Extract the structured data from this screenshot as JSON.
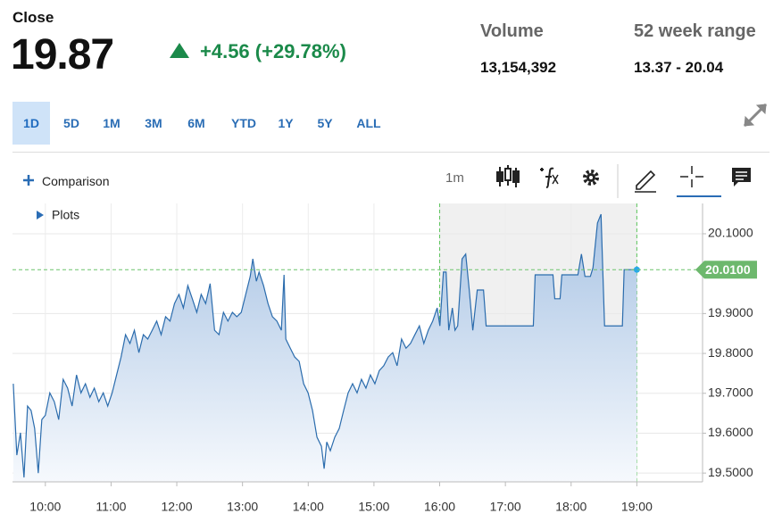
{
  "header": {
    "label": "Close",
    "price": "19.87",
    "change": "+4.56 (+29.78%)",
    "stats": [
      {
        "label": "Volume",
        "value": "13,154,392"
      },
      {
        "label": "52 week range",
        "value": "13.37 - 20.04"
      }
    ]
  },
  "ranges": [
    "1D",
    "5D",
    "1M",
    "3M",
    "6M",
    "YTD",
    "1Y",
    "5Y",
    "ALL"
  ],
  "toolbar": {
    "comparison": "Comparison",
    "interval": "1m",
    "plots": "Plots"
  },
  "chart_data": {
    "type": "line",
    "color": "#2b6cad",
    "x": [
      9.512,
      9.566,
      9.621,
      9.675,
      9.729,
      9.783,
      9.837,
      9.892,
      9.946,
      10.0,
      10.068,
      10.136,
      10.203,
      10.271,
      10.339,
      10.407,
      10.474,
      10.542,
      10.61,
      10.678,
      10.745,
      10.813,
      10.881,
      10.949,
      11.016,
      11.084,
      11.152,
      11.22,
      11.287,
      11.355,
      11.423,
      11.491,
      11.558,
      11.626,
      11.694,
      11.762,
      11.829,
      11.897,
      11.965,
      12.033,
      12.1,
      12.168,
      12.236,
      12.304,
      12.371,
      12.439,
      12.507,
      12.575,
      12.642,
      12.71,
      12.778,
      12.846,
      12.913,
      12.981,
      13.049,
      13.117,
      13.157,
      13.211,
      13.252,
      13.32,
      13.388,
      13.455,
      13.523,
      13.591,
      13.632,
      13.659,
      13.727,
      13.794,
      13.862,
      13.93,
      13.998,
      14.065,
      14.133,
      14.201,
      14.242,
      14.282,
      14.336,
      14.404,
      14.472,
      14.539,
      14.607,
      14.675,
      14.743,
      14.81,
      14.878,
      14.946,
      15.014,
      15.081,
      15.149,
      15.217,
      15.285,
      15.352,
      15.42,
      15.488,
      15.556,
      15.623,
      15.691,
      15.759,
      15.827,
      15.894,
      15.962,
      16.003,
      16.057,
      16.098,
      16.138,
      16.193,
      16.233,
      16.274,
      16.341,
      16.396,
      16.45,
      16.504,
      16.572,
      16.667,
      16.707,
      16.911,
      17.425,
      17.453,
      17.724,
      17.751,
      17.832,
      17.859,
      18.103,
      18.157,
      18.211,
      18.293,
      18.333,
      18.401,
      18.455,
      18.509,
      18.78,
      18.807,
      19.0
    ],
    "values": [
      19.724,
      19.545,
      19.601,
      19.489,
      19.668,
      19.657,
      19.612,
      19.5,
      19.634,
      19.645,
      19.701,
      19.679,
      19.634,
      19.735,
      19.713,
      19.668,
      19.746,
      19.701,
      19.724,
      19.69,
      19.713,
      19.679,
      19.701,
      19.668,
      19.701,
      19.746,
      19.791,
      19.847,
      19.825,
      19.858,
      19.802,
      19.847,
      19.836,
      19.858,
      19.881,
      19.847,
      19.892,
      19.881,
      19.925,
      19.948,
      19.914,
      19.97,
      19.937,
      19.903,
      19.948,
      19.925,
      19.975,
      19.858,
      19.847,
      19.903,
      19.881,
      19.903,
      19.892,
      19.903,
      19.948,
      19.993,
      20.037,
      19.981,
      20.004,
      19.97,
      19.925,
      19.892,
      19.881,
      19.858,
      19.997,
      19.836,
      19.813,
      19.791,
      19.78,
      19.724,
      19.701,
      19.657,
      19.59,
      19.567,
      19.511,
      19.578,
      19.556,
      19.59,
      19.612,
      19.657,
      19.701,
      19.724,
      19.701,
      19.735,
      19.713,
      19.746,
      19.724,
      19.757,
      19.769,
      19.791,
      19.802,
      19.769,
      19.836,
      19.813,
      19.825,
      19.847,
      19.869,
      19.825,
      19.858,
      19.881,
      19.914,
      19.869,
      20.004,
      20.004,
      19.858,
      19.914,
      19.858,
      19.869,
      20.037,
      20.049,
      19.959,
      19.858,
      19.959,
      19.959,
      19.869,
      19.869,
      19.869,
      19.997,
      19.997,
      19.937,
      19.937,
      19.997,
      19.997,
      20.049,
      19.993,
      19.993,
      20.015,
      20.127,
      20.149,
      19.869,
      19.869,
      20.01,
      20.01
    ],
    "xlim": [
      9.5,
      20
    ],
    "xticks": [
      {
        "value": 10,
        "label": "10:00"
      },
      {
        "value": 11,
        "label": "11:00"
      },
      {
        "value": 12,
        "label": "12:00"
      },
      {
        "value": 13,
        "label": "13:00"
      },
      {
        "value": 14,
        "label": "14:00"
      },
      {
        "value": 15,
        "label": "15:00"
      },
      {
        "value": 16,
        "label": "16:00"
      },
      {
        "value": 17,
        "label": "17:00"
      },
      {
        "value": 18,
        "label": "18:00"
      },
      {
        "value": 19,
        "label": "19:00"
      }
    ],
    "ylim": [
      19.478,
      20.176
    ],
    "yticks": [
      {
        "value": 19.5,
        "label": "19.5000"
      },
      {
        "value": 19.6,
        "label": "19.6000"
      },
      {
        "value": 19.7,
        "label": "19.7000"
      },
      {
        "value": 19.8,
        "label": "19.8000"
      },
      {
        "value": 19.9,
        "label": "19.9000"
      },
      {
        "value": 20.1,
        "label": "20.1000"
      }
    ],
    "grid": true,
    "shaded_range": [
      16,
      19
    ],
    "reference": {
      "value": 20.01,
      "label": "20.0100"
    }
  }
}
